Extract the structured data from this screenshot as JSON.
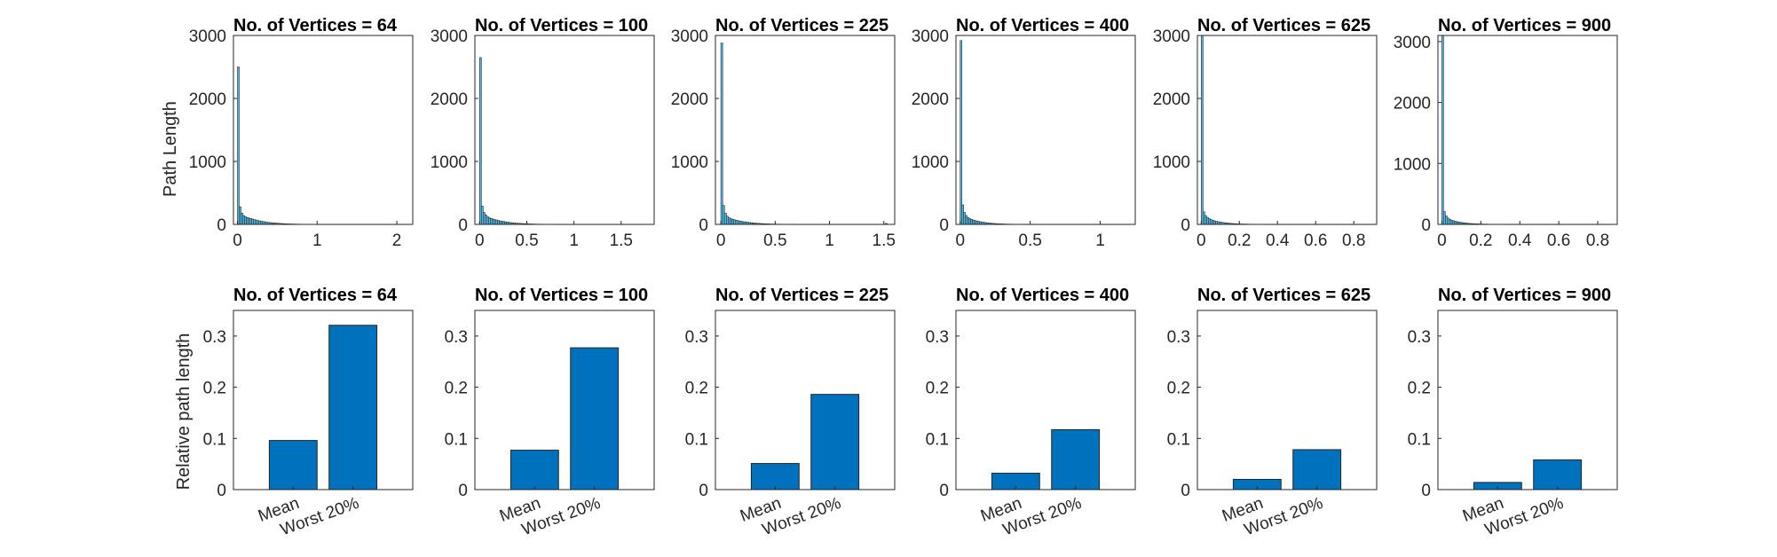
{
  "figure": {
    "top_ylabel": "Path Length",
    "bottom_ylabel": "Relative path length",
    "bar_color": "#0072BD",
    "hist_color": "#4DBEEE"
  },
  "chart_data": [
    {
      "type": "bar",
      "title": "No. of Vertices = 64",
      "ylim": [
        0,
        3000
      ],
      "yticks": [
        0,
        1000,
        2000,
        3000
      ],
      "xlim": [
        -0.05,
        2.2
      ],
      "xticks": [
        0,
        1,
        2
      ],
      "x_tick_labels": [
        "0",
        "1",
        "2"
      ],
      "bin_edges_start": 0,
      "bin_width": 0.0225,
      "values": [
        2500,
        280,
        180,
        140,
        120,
        110,
        100,
        95,
        85,
        75,
        70,
        60,
        55,
        50,
        45,
        40,
        35,
        30,
        28,
        25,
        22,
        20,
        18,
        16,
        14,
        12,
        10,
        9,
        8,
        7,
        6,
        5,
        5,
        4,
        4,
        3,
        3,
        3,
        2,
        2,
        2,
        2,
        2,
        1,
        1,
        1,
        1,
        1,
        1,
        1,
        1,
        1,
        1,
        1,
        1,
        1,
        1,
        1,
        1,
        1,
        1,
        1,
        1,
        1,
        1,
        1,
        1,
        1,
        1,
        1,
        1,
        1,
        1,
        1,
        1,
        1,
        1,
        1,
        1,
        1,
        1,
        1,
        1,
        1,
        1,
        1,
        1,
        1,
        1,
        1,
        1,
        1,
        1,
        1,
        1,
        1
      ],
      "xlabel": "",
      "ylabel": "Path Length"
    },
    {
      "type": "bar",
      "title": "No. of Vertices = 100",
      "ylim": [
        0,
        3000
      ],
      "yticks": [
        0,
        1000,
        2000,
        3000
      ],
      "xlim": [
        -0.05,
        1.85
      ],
      "xticks": [
        0,
        0.5,
        1,
        1.5
      ],
      "x_tick_labels": [
        "0",
        "0.5",
        "1",
        "1.5"
      ],
      "bin_edges_start": 0,
      "bin_width": 0.019,
      "values": [
        2650,
        290,
        190,
        150,
        120,
        105,
        95,
        85,
        75,
        70,
        62,
        55,
        50,
        45,
        40,
        36,
        32,
        28,
        25,
        22,
        20,
        18,
        16,
        14,
        12,
        10,
        9,
        8,
        7,
        6,
        5,
        5,
        4,
        4,
        3,
        3,
        3,
        2,
        2,
        2,
        2,
        1,
        1,
        1,
        1,
        1,
        1,
        1,
        1,
        1,
        1,
        1,
        1,
        1,
        1,
        1,
        1,
        1,
        1,
        1,
        1,
        1,
        1,
        1,
        1,
        1,
        1,
        1,
        1,
        1,
        1,
        1,
        1,
        1,
        1,
        1,
        1,
        1,
        1,
        1,
        1,
        1,
        1,
        1,
        1,
        1,
        1,
        1,
        1,
        1,
        1,
        1
      ],
      "xlabel": "",
      "ylabel": ""
    },
    {
      "type": "bar",
      "title": "No. of Vertices = 225",
      "ylim": [
        0,
        3000
      ],
      "yticks": [
        0,
        1000,
        2000,
        3000
      ],
      "xlim": [
        -0.05,
        1.6
      ],
      "xticks": [
        0,
        0.5,
        1,
        1.5
      ],
      "x_tick_labels": [
        "0",
        "0.5",
        "1",
        "1.5"
      ],
      "bin_edges_start": 0,
      "bin_width": 0.017,
      "values": [
        2880,
        300,
        180,
        130,
        105,
        90,
        80,
        72,
        65,
        58,
        52,
        47,
        42,
        38,
        34,
        30,
        27,
        24,
        21,
        18,
        16,
        14,
        12,
        10,
        9,
        8,
        7,
        6,
        5,
        5,
        4,
        4,
        3,
        3,
        3,
        2,
        2,
        2,
        2,
        1,
        1,
        1,
        1,
        1,
        1,
        1,
        1,
        1,
        1,
        1,
        1,
        1,
        1,
        1,
        1,
        1,
        1,
        1,
        1,
        1,
        1,
        1,
        1,
        1,
        1,
        1,
        1,
        1,
        1,
        1,
        1,
        1,
        1,
        1,
        1,
        1,
        1,
        1,
        1,
        1,
        1,
        1,
        1,
        1,
        1,
        1,
        1,
        1,
        1,
        15
      ],
      "xlabel": "",
      "ylabel": ""
    },
    {
      "type": "bar",
      "title": "No. of Vertices = 400",
      "ylim": [
        0,
        3000
      ],
      "yticks": [
        0,
        1000,
        2000,
        3000
      ],
      "xlim": [
        -0.03,
        1.25
      ],
      "xticks": [
        0,
        0.5,
        1
      ],
      "x_tick_labels": [
        "0",
        "0.5",
        "1"
      ],
      "bin_edges_start": 0,
      "bin_width": 0.0125,
      "values": [
        2920,
        310,
        190,
        140,
        110,
        92,
        80,
        70,
        62,
        55,
        48,
        42,
        37,
        33,
        29,
        25,
        22,
        19,
        16,
        14,
        12,
        10,
        9,
        8,
        7,
        6,
        5,
        4,
        4,
        3,
        3,
        3,
        2,
        2,
        2,
        2,
        1,
        1,
        1,
        1,
        1,
        1,
        1,
        1,
        1,
        1,
        1,
        1,
        1,
        1,
        1,
        1,
        1,
        1,
        1,
        1,
        1,
        1,
        1,
        1,
        1,
        1,
        1,
        1,
        1,
        1,
        1,
        1,
        1,
        1,
        1,
        1,
        1,
        1,
        1,
        1,
        1,
        1,
        1,
        1,
        1,
        1,
        1,
        1,
        1,
        1,
        1,
        1,
        1,
        1,
        1,
        1,
        1,
        1,
        1,
        1
      ],
      "xlabel": "",
      "ylabel": ""
    },
    {
      "type": "bar",
      "title": "No. of Vertices = 625",
      "ylim": [
        0,
        3000
      ],
      "yticks": [
        0,
        1000,
        2000,
        3000
      ],
      "xlim": [
        -0.02,
        0.92
      ],
      "xticks": [
        0,
        0.2,
        0.4,
        0.6,
        0.8
      ],
      "x_tick_labels": [
        "0",
        "0.2",
        "0.4",
        "0.6",
        "0.8"
      ],
      "bin_edges_start": 0,
      "bin_width": 0.0095,
      "values": [
        3000,
        200,
        140,
        110,
        90,
        75,
        65,
        55,
        48,
        42,
        37,
        32,
        28,
        24,
        21,
        18,
        15,
        13,
        11,
        9,
        8,
        7,
        6,
        5,
        5,
        4,
        4,
        3,
        3,
        3,
        2,
        2,
        2,
        2,
        2,
        1,
        1,
        1,
        1,
        1,
        1,
        1,
        1,
        1,
        1,
        1,
        1,
        1,
        1,
        1,
        1,
        1,
        1,
        1,
        1,
        1,
        1,
        1,
        1,
        1,
        1,
        1,
        1,
        1,
        1,
        1,
        1,
        1,
        1,
        1,
        1,
        1,
        1,
        1,
        1,
        1,
        1,
        1,
        1,
        1,
        1,
        1,
        1,
        1,
        1,
        1,
        1,
        1,
        1,
        1,
        1,
        1,
        1,
        1
      ],
      "xlabel": "",
      "ylabel": ""
    },
    {
      "type": "bar",
      "title": "No. of Vertices = 900",
      "ylim": [
        0,
        3100
      ],
      "yticks": [
        0,
        1000,
        2000,
        3000
      ],
      "xlim": [
        -0.02,
        0.9
      ],
      "xticks": [
        0,
        0.2,
        0.4,
        0.6,
        0.8
      ],
      "x_tick_labels": [
        "0",
        "0.2",
        "0.4",
        "0.6",
        "0.8"
      ],
      "bin_edges_start": 0,
      "bin_width": 0.009,
      "values": [
        3100,
        210,
        140,
        105,
        85,
        70,
        60,
        52,
        45,
        39,
        34,
        30,
        26,
        22,
        19,
        16,
        14,
        12,
        10,
        9,
        8,
        7,
        6,
        5,
        5,
        4,
        4,
        3,
        3,
        3,
        2,
        2,
        2,
        2,
        2,
        1,
        1,
        1,
        1,
        1,
        1,
        1,
        1,
        1,
        1,
        1,
        1,
        1,
        1,
        1,
        1,
        1,
        1,
        1,
        1,
        1,
        1,
        1,
        1,
        1,
        1,
        1,
        1,
        1,
        1,
        1,
        1,
        1,
        1,
        1,
        1,
        1,
        1,
        1,
        1,
        1,
        1,
        1,
        1,
        1,
        1,
        1,
        1,
        1,
        1,
        1,
        1,
        1,
        1,
        1,
        1,
        1,
        1,
        1,
        1,
        1
      ],
      "xlabel": "",
      "ylabel": ""
    },
    {
      "type": "bar",
      "title": "No. of Vertices = 64",
      "categories": [
        "Mean",
        "Worst 20%"
      ],
      "values": [
        0.096,
        0.321
      ],
      "ylim": [
        0,
        0.35
      ],
      "yticks": [
        0,
        0.1,
        0.2,
        0.3
      ],
      "y_tick_labels": [
        "0",
        "0.1",
        "0.2",
        "0.3"
      ],
      "xlabel": "",
      "ylabel": "Relative path length"
    },
    {
      "type": "bar",
      "title": "No. of Vertices = 100",
      "categories": [
        "Mean",
        "Worst 20%"
      ],
      "values": [
        0.077,
        0.277
      ],
      "ylim": [
        0,
        0.35
      ],
      "yticks": [
        0,
        0.1,
        0.2,
        0.3
      ],
      "y_tick_labels": [
        "0",
        "0.1",
        "0.2",
        "0.3"
      ],
      "xlabel": "",
      "ylabel": ""
    },
    {
      "type": "bar",
      "title": "No. of Vertices = 225",
      "categories": [
        "Mean",
        "Worst 20%"
      ],
      "values": [
        0.051,
        0.186
      ],
      "ylim": [
        0,
        0.35
      ],
      "yticks": [
        0,
        0.1,
        0.2,
        0.3
      ],
      "y_tick_labels": [
        "0",
        "0.1",
        "0.2",
        "0.3"
      ],
      "xlabel": "",
      "ylabel": ""
    },
    {
      "type": "bar",
      "title": "No. of Vertices = 400",
      "categories": [
        "Mean",
        "Worst 20%"
      ],
      "values": [
        0.032,
        0.117
      ],
      "ylim": [
        0,
        0.35
      ],
      "yticks": [
        0,
        0.1,
        0.2,
        0.3
      ],
      "y_tick_labels": [
        "0",
        "0.1",
        "0.2",
        "0.3"
      ],
      "xlabel": "",
      "ylabel": ""
    },
    {
      "type": "bar",
      "title": "No. of Vertices = 625",
      "categories": [
        "Mean",
        "Worst 20%"
      ],
      "values": [
        0.02,
        0.078
      ],
      "ylim": [
        0,
        0.35
      ],
      "yticks": [
        0,
        0.1,
        0.2,
        0.3
      ],
      "y_tick_labels": [
        "0",
        "0.1",
        "0.2",
        "0.3"
      ],
      "xlabel": "",
      "ylabel": ""
    },
    {
      "type": "bar",
      "title": "No. of Vertices = 900",
      "categories": [
        "Mean",
        "Worst 20%"
      ],
      "values": [
        0.014,
        0.058
      ],
      "ylim": [
        0,
        0.35
      ],
      "yticks": [
        0,
        0.1,
        0.2,
        0.3
      ],
      "y_tick_labels": [
        "0",
        "0.1",
        "0.2",
        "0.3"
      ],
      "xlabel": "",
      "ylabel": ""
    }
  ]
}
